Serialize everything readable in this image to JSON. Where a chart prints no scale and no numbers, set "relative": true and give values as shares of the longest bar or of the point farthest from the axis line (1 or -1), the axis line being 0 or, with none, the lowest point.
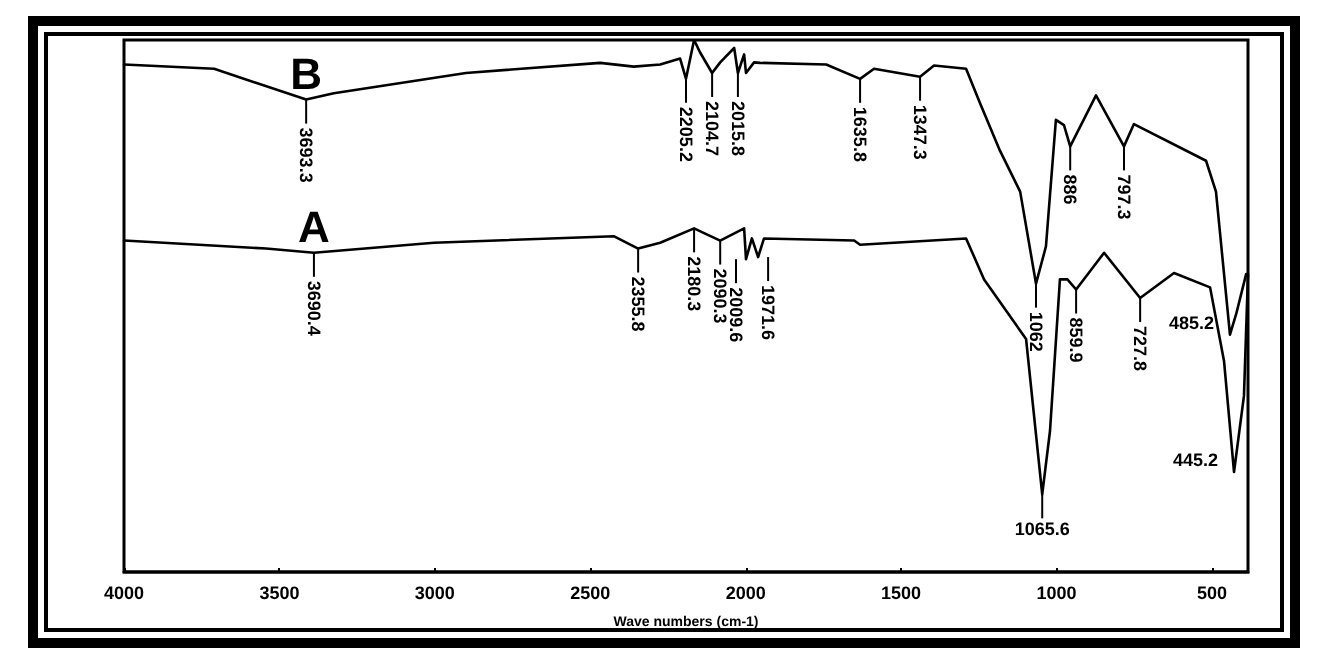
{
  "chart_data": {
    "type": "line",
    "xlabel": "Wave numbers (cm-1)",
    "relative": true,
    "marker": "none",
    "legend": false,
    "grid": false,
    "tick_labels": "x",
    "xlim": [
      4000,
      384
    ],
    "xticks": [
      4000,
      3500,
      3000,
      2500,
      2000,
      1500,
      1000,
      500
    ],
    "series": [
      {
        "name": "B",
        "color": "#000000",
        "x": [
          4000,
          3710,
          3414,
          3325,
          2900,
          2468,
          2360,
          2275,
          2211,
          2192,
          2166,
          2147,
          2108,
          2082,
          2037,
          2025,
          2005,
          1999,
          1973,
          1954,
          1741,
          1632,
          1587,
          1439,
          1394,
          1291,
          1246,
          1182,
          1117,
          1066,
          1034,
          1002,
          976,
          956,
          873,
          783,
          751,
          519,
          487,
          442,
          422,
          390
        ],
        "values": [
          0.954,
          0.946,
          0.888,
          0.9,
          0.938,
          0.957,
          0.95,
          0.954,
          0.965,
          0.927,
          1,
          0.977,
          0.938,
          0.958,
          0.985,
          0.938,
          0.973,
          0.938,
          0.958,
          0.957,
          0.954,
          0.927,
          0.946,
          0.931,
          0.952,
          0.946,
          0.881,
          0.792,
          0.715,
          0.542,
          0.612,
          0.85,
          0.84,
          0.8,
          0.896,
          0.8,
          0.842,
          0.773,
          0.715,
          0.446,
          0.485,
          0.56
        ]
      },
      {
        "name": "A",
        "color": "#000000",
        "x": [
          4000,
          3543,
          3389,
          3003,
          2423,
          2346,
          2275,
          2166,
          2127,
          2082,
          2005,
          1999,
          1980,
          1960,
          1941,
          1651,
          1632,
          1291,
          1233,
          1098,
          1046,
          1021,
          989,
          965,
          937,
          847,
          731,
          622,
          506,
          461,
          429,
          397,
          384
        ],
        "values": [
          0.623,
          0.608,
          0.6,
          0.619,
          0.631,
          0.608,
          0.619,
          0.646,
          0.635,
          0.623,
          0.646,
          0.588,
          0.627,
          0.592,
          0.627,
          0.623,
          0.615,
          0.627,
          0.55,
          0.438,
          0.146,
          0.265,
          0.55,
          0.55,
          0.531,
          0.6,
          0.515,
          0.562,
          0.535,
          0.396,
          0.188,
          0.331,
          0.56
        ]
      }
    ],
    "annotations": [
      {
        "text": "3693.3",
        "x": 3414,
        "y": 0.888
      },
      {
        "text": "2205.2",
        "x": 2192,
        "y": 0.927
      },
      {
        "text": "2104.7",
        "x": 2108,
        "y": 0.938
      },
      {
        "text": "2015.8",
        "x": 2025,
        "y": 0.938
      },
      {
        "text": "1635.8",
        "x": 1632,
        "y": 0.927
      },
      {
        "text": "1347.3",
        "x": 1439,
        "y": 0.931
      },
      {
        "text": "886",
        "x": 956,
        "y": 0.8
      },
      {
        "text": "797.3",
        "x": 783,
        "y": 0.8
      },
      {
        "text": "1062",
        "x": 1066,
        "y": 0.542
      },
      {
        "text": "485.2",
        "x": 442,
        "y": 0.446
      },
      {
        "text": "3690.4",
        "x": 3389,
        "y": 0.6
      },
      {
        "text": "2355.8",
        "x": 2346,
        "y": 0.608
      },
      {
        "text": "2180.3",
        "x": 2166,
        "y": 0.646
      },
      {
        "text": "2090.3",
        "x": 2082,
        "y": 0.623
      },
      {
        "text": "2009.6",
        "x": 1999,
        "y": 0.588
      },
      {
        "text": "1971.6",
        "x": 1960,
        "y": 0.592
      },
      {
        "text": "859.9",
        "x": 937,
        "y": 0.531
      },
      {
        "text": "727.8",
        "x": 731,
        "y": 0.515
      },
      {
        "text": "1065.6",
        "x": 1046,
        "y": 0.146
      },
      {
        "text": "445.2",
        "x": 429,
        "y": 0.188
      }
    ]
  }
}
